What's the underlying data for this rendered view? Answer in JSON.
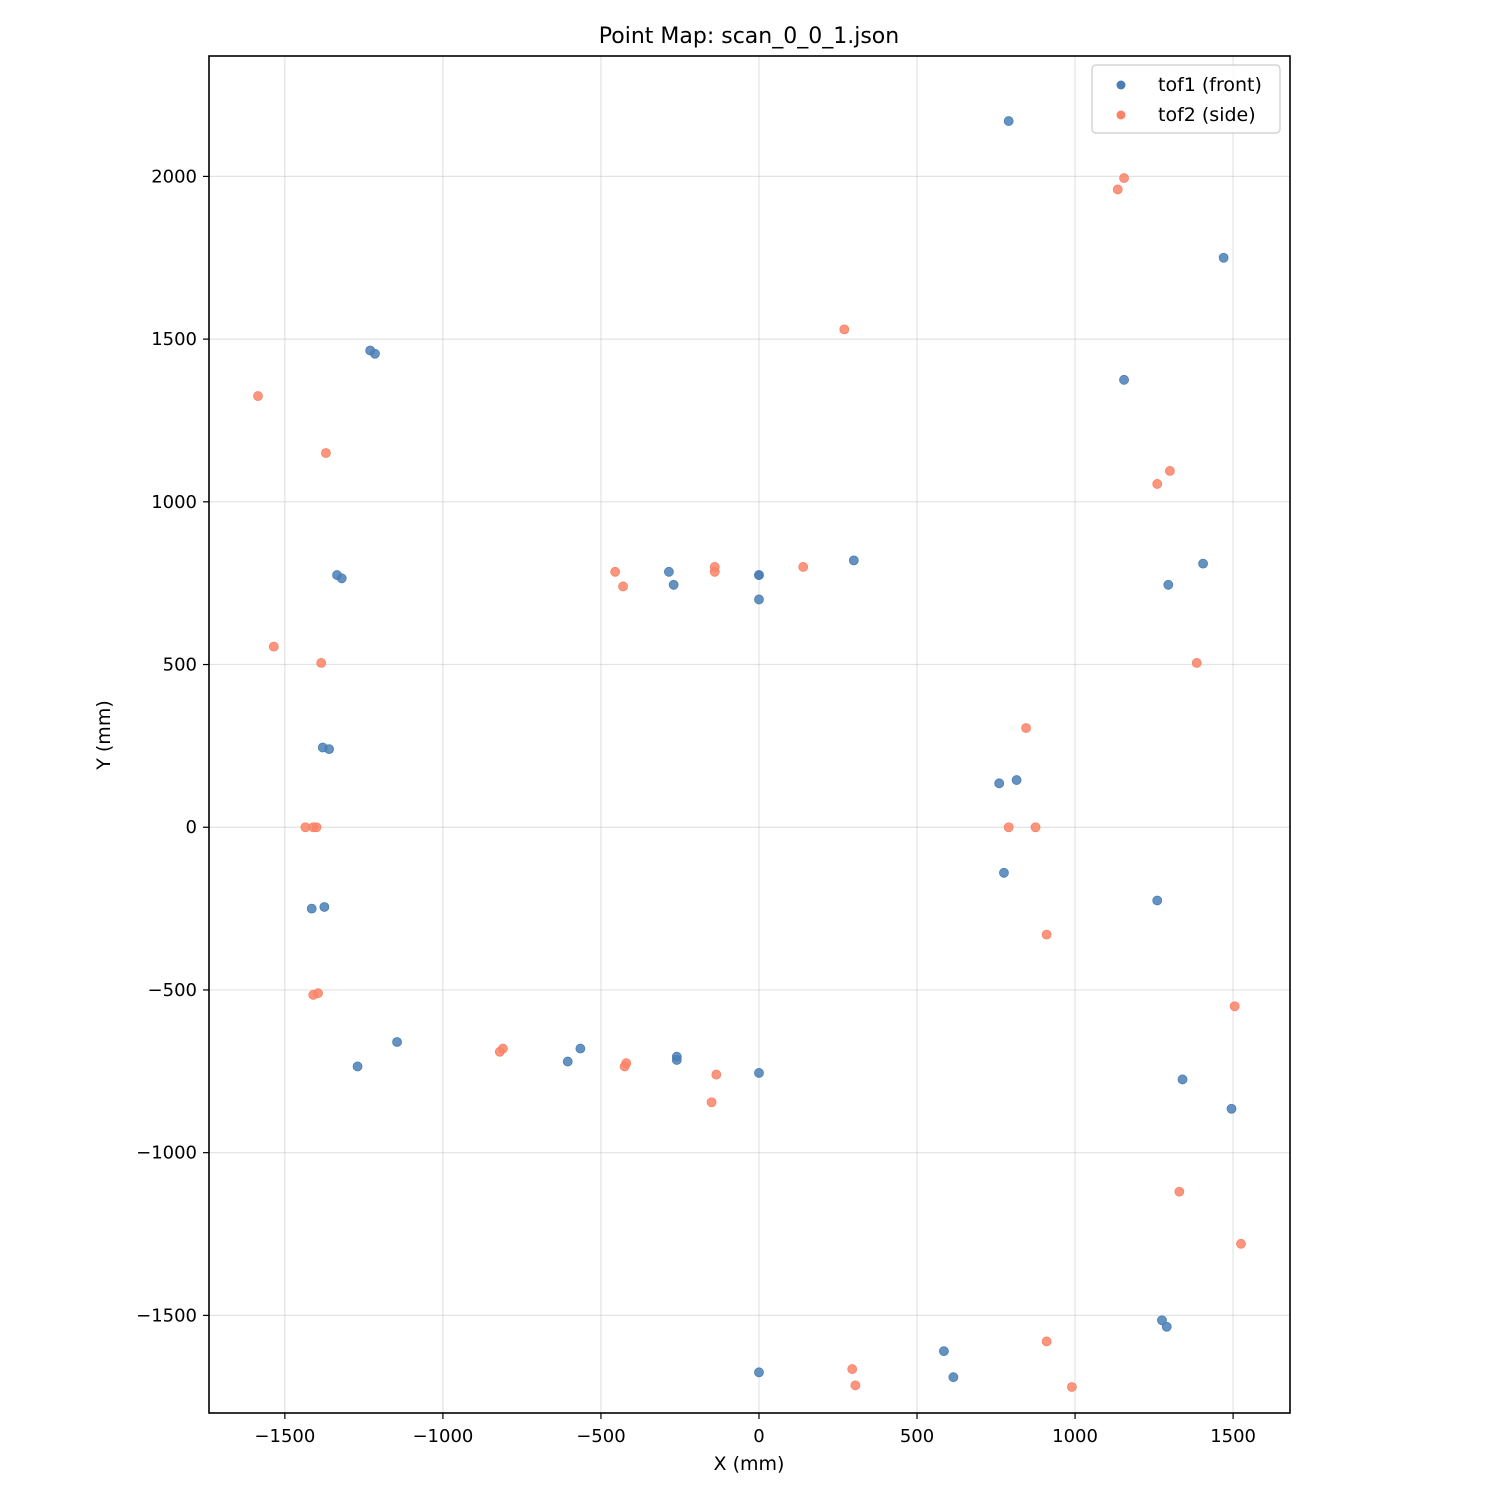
{
  "chart_data": {
    "type": "scatter",
    "title": "Point Map: scan_0_0_1.json",
    "xlabel": "X (mm)",
    "ylabel": "Y (mm)",
    "xlim": [
      -1740,
      1680
    ],
    "ylim": [
      -1800,
      2370
    ],
    "xticks": [
      -1500,
      -1000,
      -500,
      0,
      500,
      1000,
      1500
    ],
    "yticks": [
      -1500,
      -1000,
      -500,
      0,
      500,
      1000,
      1500,
      2000
    ],
    "grid": true,
    "legend_position": "top-right",
    "series": [
      {
        "name": "tof1 (front)",
        "color": "#4a7fb5",
        "points": [
          [
            790,
            2170
          ],
          [
            1470,
            1750
          ],
          [
            1155,
            1375
          ],
          [
            1405,
            810
          ],
          [
            1295,
            745
          ],
          [
            300,
            820
          ],
          [
            0,
            775
          ],
          [
            0,
            775
          ],
          [
            0,
            700
          ],
          [
            -285,
            785
          ],
          [
            -270,
            745
          ],
          [
            -1230,
            1465
          ],
          [
            -1215,
            1455
          ],
          [
            -1335,
            775
          ],
          [
            -1320,
            765
          ],
          [
            -1380,
            245
          ],
          [
            -1360,
            240
          ],
          [
            -1415,
            -250
          ],
          [
            -1375,
            -245
          ],
          [
            760,
            135
          ],
          [
            815,
            145
          ],
          [
            775,
            -140
          ],
          [
            1260,
            -225
          ],
          [
            -1145,
            -660
          ],
          [
            -1270,
            -735
          ],
          [
            -565,
            -680
          ],
          [
            -605,
            -720
          ],
          [
            -260,
            -705
          ],
          [
            -260,
            -715
          ],
          [
            0,
            -755
          ],
          [
            1340,
            -775
          ],
          [
            1495,
            -865
          ],
          [
            1275,
            -1515
          ],
          [
            1290,
            -1535
          ],
          [
            585,
            -1610
          ],
          [
            615,
            -1690
          ],
          [
            0,
            -1675
          ]
        ]
      },
      {
        "name": "tof2 (side)",
        "color": "#fa8266",
        "points": [
          [
            1155,
            1995
          ],
          [
            1135,
            1960
          ],
          [
            270,
            1530
          ],
          [
            1300,
            1095
          ],
          [
            1260,
            1055
          ],
          [
            1385,
            505
          ],
          [
            845,
            305
          ],
          [
            790,
            0
          ],
          [
            875,
            0
          ],
          [
            910,
            -330
          ],
          [
            1505,
            -550
          ],
          [
            1330,
            -1120
          ],
          [
            1525,
            -1280
          ],
          [
            910,
            -1580
          ],
          [
            295,
            -1665
          ],
          [
            305,
            -1715
          ],
          [
            990,
            -1720
          ],
          [
            -1585,
            1325
          ],
          [
            -1370,
            1150
          ],
          [
            -1535,
            555
          ],
          [
            -1385,
            505
          ],
          [
            -1435,
            0
          ],
          [
            -1410,
            0
          ],
          [
            -1400,
            0
          ],
          [
            -1410,
            -515
          ],
          [
            -1395,
            -510
          ],
          [
            -455,
            785
          ],
          [
            -430,
            740
          ],
          [
            -140,
            800
          ],
          [
            -140,
            785
          ],
          [
            140,
            800
          ],
          [
            -820,
            -690
          ],
          [
            -810,
            -680
          ],
          [
            -425,
            -735
          ],
          [
            -420,
            -725
          ],
          [
            -135,
            -760
          ],
          [
            -150,
            -845
          ]
        ]
      }
    ]
  }
}
